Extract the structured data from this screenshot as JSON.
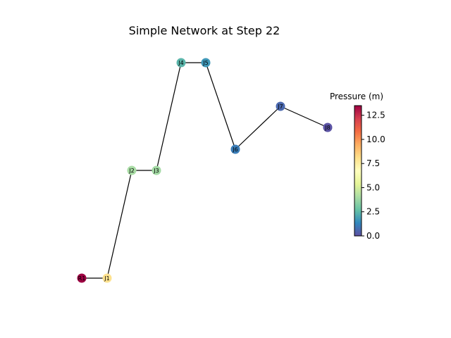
{
  "title": "Simple Network at Step 22",
  "colorbar": {
    "label": "Pressure (m)",
    "min": 0.0,
    "max": 13.5,
    "ticks": [
      "0.0",
      "2.5",
      "5.0",
      "7.5",
      "10.0",
      "12.5"
    ],
    "colormap": "Spectral_r",
    "stops": [
      "#5e4fa2",
      "#3288bd",
      "#66c2a5",
      "#abdda4",
      "#e6f598",
      "#ffffbf",
      "#fee08b",
      "#fdae61",
      "#f46d43",
      "#d53e4f",
      "#9e0142"
    ]
  },
  "nodes": [
    {
      "id": "R1",
      "label": "R1",
      "pressure": 13.5
    },
    {
      "id": "J1",
      "label": "J1",
      "pressure": 8.0
    },
    {
      "id": "J2",
      "label": "J2",
      "pressure": 4.0
    },
    {
      "id": "J3",
      "label": "J3",
      "pressure": 3.9
    },
    {
      "id": "J4",
      "label": "J4",
      "pressure": 2.4
    },
    {
      "id": "J5",
      "label": "J5",
      "pressure": 1.7
    },
    {
      "id": "J6",
      "label": "J6",
      "pressure": 1.1
    },
    {
      "id": "J7",
      "label": "J7",
      "pressure": 0.6
    },
    {
      "id": "J8",
      "label": "J8",
      "pressure": 0.1
    }
  ],
  "links": [
    [
      "R1",
      "J1"
    ],
    [
      "J1",
      "J2"
    ],
    [
      "J2",
      "J3"
    ],
    [
      "J3",
      "J4"
    ],
    [
      "J4",
      "J5"
    ],
    [
      "J5",
      "J6"
    ],
    [
      "J6",
      "J7"
    ],
    [
      "J7",
      "J8"
    ]
  ]
}
